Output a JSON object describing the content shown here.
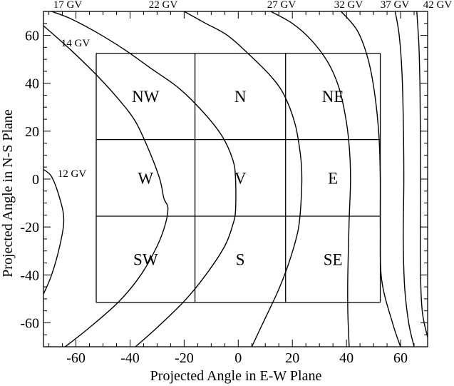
{
  "chart_data": {
    "type": "line",
    "title": "",
    "xlabel": "Projected Angle in E-W Plane",
    "ylabel": "Projected Angle in  N-S Plane",
    "xlim": [
      -72,
      70
    ],
    "ylim": [
      -70,
      70
    ],
    "x_ticks": [
      -60,
      -40,
      -20,
      0,
      20,
      40,
      60
    ],
    "y_ticks": [
      60,
      40,
      20,
      0,
      -20,
      -40,
      -60
    ],
    "x_tick_labels": [
      "-60",
      "-40",
      "-20",
      "0",
      "20",
      "40",
      "60"
    ],
    "y_tick_labels": [
      "60",
      "40",
      "20",
      "0",
      "-20",
      "-40",
      "-60"
    ],
    "grid": false,
    "legend": "none",
    "sectors": {
      "x_edges": [
        -52.5,
        -16,
        17.5,
        52.5
      ],
      "y_edges": [
        52.5,
        16.5,
        -15.5,
        -51.5
      ],
      "labels": [
        [
          "NW",
          "N",
          "NE"
        ],
        [
          "W",
          "V",
          "E"
        ],
        [
          "SW",
          "S",
          "SE"
        ]
      ]
    },
    "series": [
      {
        "name": "12 GV",
        "points": [
          [
            -72,
            4
          ],
          [
            -69,
            1
          ],
          [
            -66,
            -8
          ],
          [
            -64.5,
            -17
          ],
          [
            -66,
            -28
          ],
          [
            -69,
            -40
          ],
          [
            -72,
            -48
          ]
        ]
      },
      {
        "name": "14 GV",
        "points": [
          [
            -72,
            64
          ],
          [
            -62,
            54
          ],
          [
            -52,
            43
          ],
          [
            -44,
            33
          ],
          [
            -38,
            24
          ],
          [
            -33,
            12
          ],
          [
            -29,
            0
          ],
          [
            -27.5,
            -8
          ],
          [
            -26,
            -12
          ],
          [
            -27,
            -19
          ],
          [
            -30,
            -28
          ],
          [
            -36,
            -40
          ],
          [
            -44,
            -51
          ],
          [
            -55,
            -62
          ],
          [
            -64,
            -70
          ]
        ]
      },
      {
        "name": "17 GV",
        "points": [
          [
            -69,
            70
          ],
          [
            -62,
            67
          ],
          [
            -52,
            61
          ],
          [
            -42,
            54
          ],
          [
            -32,
            46
          ],
          [
            -22,
            38
          ],
          [
            -13,
            28
          ],
          [
            -6,
            18
          ],
          [
            -2,
            8
          ],
          [
            -1,
            0
          ],
          [
            -1,
            -13
          ],
          [
            -2,
            -19
          ],
          [
            -5,
            -28
          ],
          [
            -12,
            -40
          ],
          [
            -20,
            -51
          ],
          [
            -30,
            -62
          ],
          [
            -38,
            -70
          ]
        ]
      },
      {
        "name": "22 GV",
        "points": [
          [
            -20,
            70
          ],
          [
            -12,
            65
          ],
          [
            -4,
            60
          ],
          [
            4,
            52
          ],
          [
            12,
            43
          ],
          [
            17,
            35
          ],
          [
            21,
            23
          ],
          [
            23,
            10
          ],
          [
            23.5,
            0
          ],
          [
            23,
            -13
          ],
          [
            22,
            -22
          ],
          [
            19,
            -34
          ],
          [
            15,
            -46
          ],
          [
            10,
            -58
          ],
          [
            5,
            -70
          ]
        ]
      },
      {
        "name": "27 GV",
        "points": [
          [
            12,
            70
          ],
          [
            20,
            65
          ],
          [
            27,
            58
          ],
          [
            33,
            49
          ],
          [
            37,
            39
          ],
          [
            39.5,
            27
          ],
          [
            41,
            14
          ],
          [
            41.5,
            0
          ],
          [
            41,
            -17
          ],
          [
            40.5,
            -40
          ],
          [
            40.5,
            -55
          ],
          [
            41,
            -70
          ]
        ]
      },
      {
        "name": "32 GV",
        "points": [
          [
            38,
            70
          ],
          [
            44,
            62
          ],
          [
            48,
            50
          ],
          [
            50.5,
            35
          ],
          [
            52,
            18
          ],
          [
            52.5,
            0
          ],
          [
            52.5,
            -20
          ],
          [
            53,
            -42
          ],
          [
            57,
            -60
          ],
          [
            60,
            -70
          ]
        ]
      },
      {
        "name": "37 GV",
        "points": [
          [
            58,
            70
          ],
          [
            59.5,
            60
          ],
          [
            60.5,
            45
          ],
          [
            61,
            25
          ],
          [
            61.2,
            0
          ],
          [
            61,
            -25
          ],
          [
            61.5,
            -45
          ],
          [
            63,
            -60
          ],
          [
            65,
            -70
          ]
        ]
      },
      {
        "name": "42 GV",
        "points": [
          [
            66,
            70
          ],
          [
            66.8,
            55
          ],
          [
            67.2,
            35
          ],
          [
            67.4,
            0
          ],
          [
            67.3,
            -35
          ],
          [
            68,
            -55
          ],
          [
            70,
            -66
          ]
        ]
      }
    ]
  }
}
